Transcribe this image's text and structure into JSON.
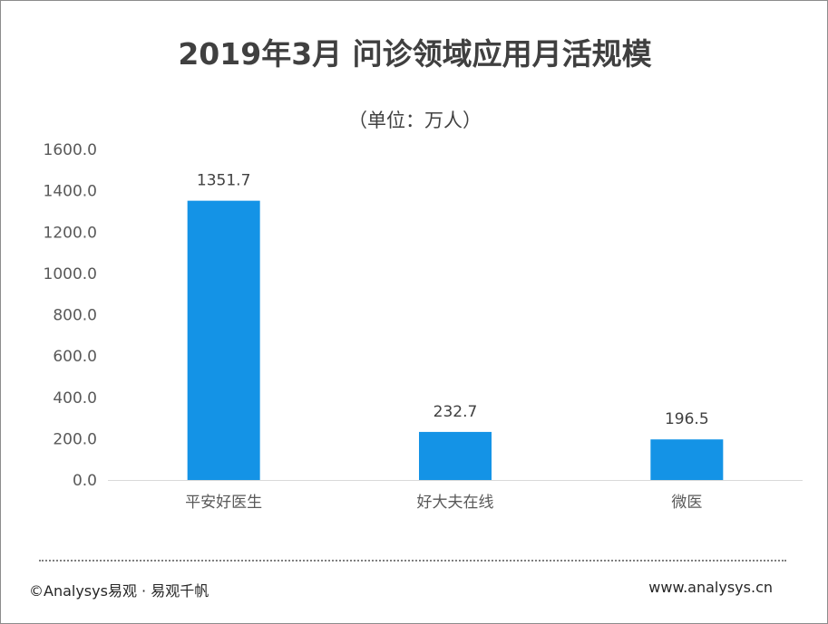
{
  "chart_data": {
    "type": "bar",
    "title": "2019年3月 问诊领域应用月活规模",
    "subtitle": "（单位：万人）",
    "categories": [
      "平安好医生",
      "好大夫在线",
      "微医"
    ],
    "values": [
      1351.7,
      232.7,
      196.5
    ],
    "data_labels": [
      "1351.7",
      "232.7",
      "196.5"
    ],
    "ylim": [
      0,
      1600
    ],
    "yticks": [
      "0.0",
      "200.0",
      "400.0",
      "600.0",
      "800.0",
      "1000.0",
      "1200.0",
      "1400.0",
      "1600.0"
    ],
    "grid": false,
    "bar_color": "#1493e6",
    "axis_color": "#d9d9d9"
  },
  "footer": {
    "left": "©Analysys易观 · 易观千帆",
    "right": "www.analysys.cn"
  }
}
